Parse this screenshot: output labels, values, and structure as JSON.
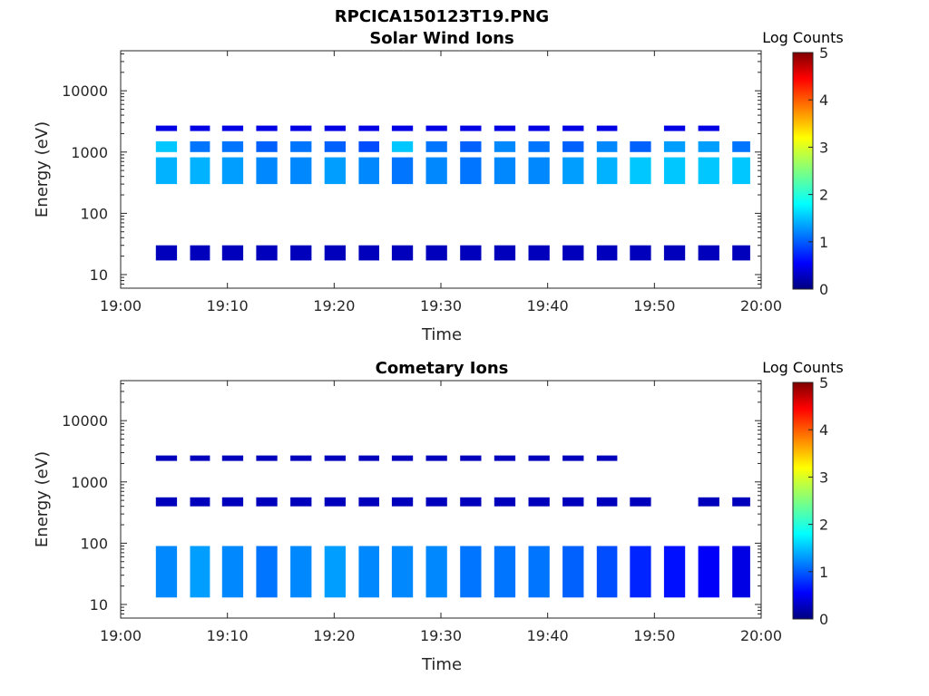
{
  "figure": {
    "filename_title": "RPCICA150123T19.PNG"
  },
  "colors": {
    "background": "#ffffff",
    "axis": "#262626",
    "colormap": [
      "#00007f",
      "#0000ff",
      "#007fff",
      "#00ffff",
      "#7fff7f",
      "#ffff00",
      "#ff7f00",
      "#ff0000",
      "#7f0000"
    ]
  },
  "chart_data": [
    {
      "type": "heatmap",
      "title": "Solar Wind Ions",
      "xlabel": "Time",
      "ylabel": "Energy (eV)",
      "yscale": "log",
      "xlim": [
        "19:00",
        "20:00"
      ],
      "ylim": [
        6,
        45000
      ],
      "xticks": [
        "19:00",
        "19:10",
        "19:20",
        "19:30",
        "19:40",
        "19:50",
        "20:00"
      ],
      "yticks": [
        "10",
        "100",
        "1000",
        "10000"
      ],
      "colorbar": {
        "label": "Log Counts",
        "min": 0,
        "max": 5,
        "ticks": [
          "0",
          "1",
          "2",
          "3",
          "4",
          "5"
        ]
      },
      "cycle_start_minutes": [
        3.3,
        6.5,
        9.5,
        12.7,
        15.9,
        19.1,
        22.3,
        25.4,
        28.6,
        31.8,
        35.0,
        38.2,
        41.4,
        44.6,
        47.7,
        50.9,
        54.1,
        57.3
      ],
      "bands": [
        {
          "energy_low": 17,
          "energy_high": 30,
          "log_counts": [
            0.3,
            0.3,
            0.3,
            0.3,
            0.3,
            0.3,
            0.3,
            0.3,
            0.3,
            0.3,
            0.3,
            0.3,
            0.3,
            0.3,
            0.3,
            0.3,
            0.3,
            0.3
          ]
        },
        {
          "energy_low": 300,
          "energy_high": 820,
          "log_counts": [
            1.5,
            1.5,
            1.4,
            1.3,
            1.3,
            1.4,
            1.3,
            1.2,
            1.3,
            1.2,
            1.3,
            1.3,
            1.4,
            1.5,
            1.6,
            1.6,
            1.6,
            1.6
          ]
        },
        {
          "energy_low": 1000,
          "energy_high": 1500,
          "log_counts": [
            1.6,
            1.2,
            1.2,
            1.1,
            1.2,
            1.1,
            1.0,
            1.6,
            1.2,
            1.1,
            1.3,
            1.2,
            1.1,
            1.3,
            1.1,
            1.4,
            1.4,
            1.2
          ]
        },
        {
          "energy_low": 2200,
          "energy_high": 2700,
          "log_counts": [
            0.5,
            0.5,
            0.5,
            0.5,
            0.5,
            0.5,
            0.5,
            0.5,
            0.5,
            0.5,
            0.5,
            0.5,
            0.5,
            0.5,
            0,
            0.5,
            0.5,
            0
          ]
        }
      ]
    },
    {
      "type": "heatmap",
      "title": "Cometary Ions",
      "xlabel": "Time",
      "ylabel": "Energy (eV)",
      "yscale": "log",
      "xlim": [
        "19:00",
        "20:00"
      ],
      "ylim": [
        6,
        45000
      ],
      "xticks": [
        "19:00",
        "19:10",
        "19:20",
        "19:30",
        "19:40",
        "19:50",
        "20:00"
      ],
      "yticks": [
        "10",
        "100",
        "1000",
        "10000"
      ],
      "colorbar": {
        "label": "Log Counts",
        "min": 0,
        "max": 5,
        "ticks": [
          "0",
          "1",
          "2",
          "3",
          "4",
          "5"
        ]
      },
      "cycle_start_minutes": [
        3.3,
        6.5,
        9.5,
        12.7,
        15.9,
        19.1,
        22.3,
        25.4,
        28.6,
        31.8,
        35.0,
        38.2,
        41.4,
        44.6,
        47.7,
        50.9,
        54.1,
        57.3
      ],
      "bands": [
        {
          "energy_low": 13,
          "energy_high": 90,
          "log_counts": [
            1.3,
            1.4,
            1.3,
            1.2,
            1.3,
            1.4,
            1.3,
            1.3,
            1.3,
            1.2,
            1.2,
            1.2,
            1.1,
            1.0,
            0.8,
            0.7,
            0.6,
            0.5
          ]
        },
        {
          "energy_low": 400,
          "energy_high": 560,
          "log_counts": [
            0.3,
            0.3,
            0.3,
            0.3,
            0.3,
            0.3,
            0.3,
            0.3,
            0.3,
            0.3,
            0.3,
            0.3,
            0.3,
            0.3,
            0.3,
            0,
            0.3,
            0.3
          ]
        },
        {
          "energy_low": 2200,
          "energy_high": 2700,
          "log_counts": [
            0.3,
            0.3,
            0.3,
            0.3,
            0.3,
            0.3,
            0.3,
            0.3,
            0.3,
            0.3,
            0.3,
            0.3,
            0.3,
            0.3,
            0,
            0,
            0,
            0
          ]
        }
      ]
    }
  ]
}
